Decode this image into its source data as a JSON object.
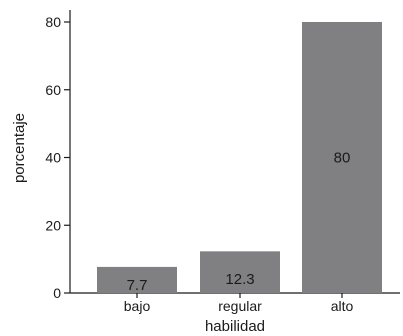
{
  "chart_data": {
    "type": "bar",
    "categories": [
      "bajo",
      "regular",
      "alto"
    ],
    "values": [
      7.7,
      12.3,
      80
    ],
    "value_labels": [
      "7.7",
      "12.3",
      "80"
    ],
    "xlabel": "habilidad",
    "ylabel": "porcentaje",
    "ylim": [
      0,
      82
    ],
    "yticks": [
      0,
      20,
      40,
      60,
      80
    ],
    "grid": false,
    "bar_color": "#808083"
  }
}
